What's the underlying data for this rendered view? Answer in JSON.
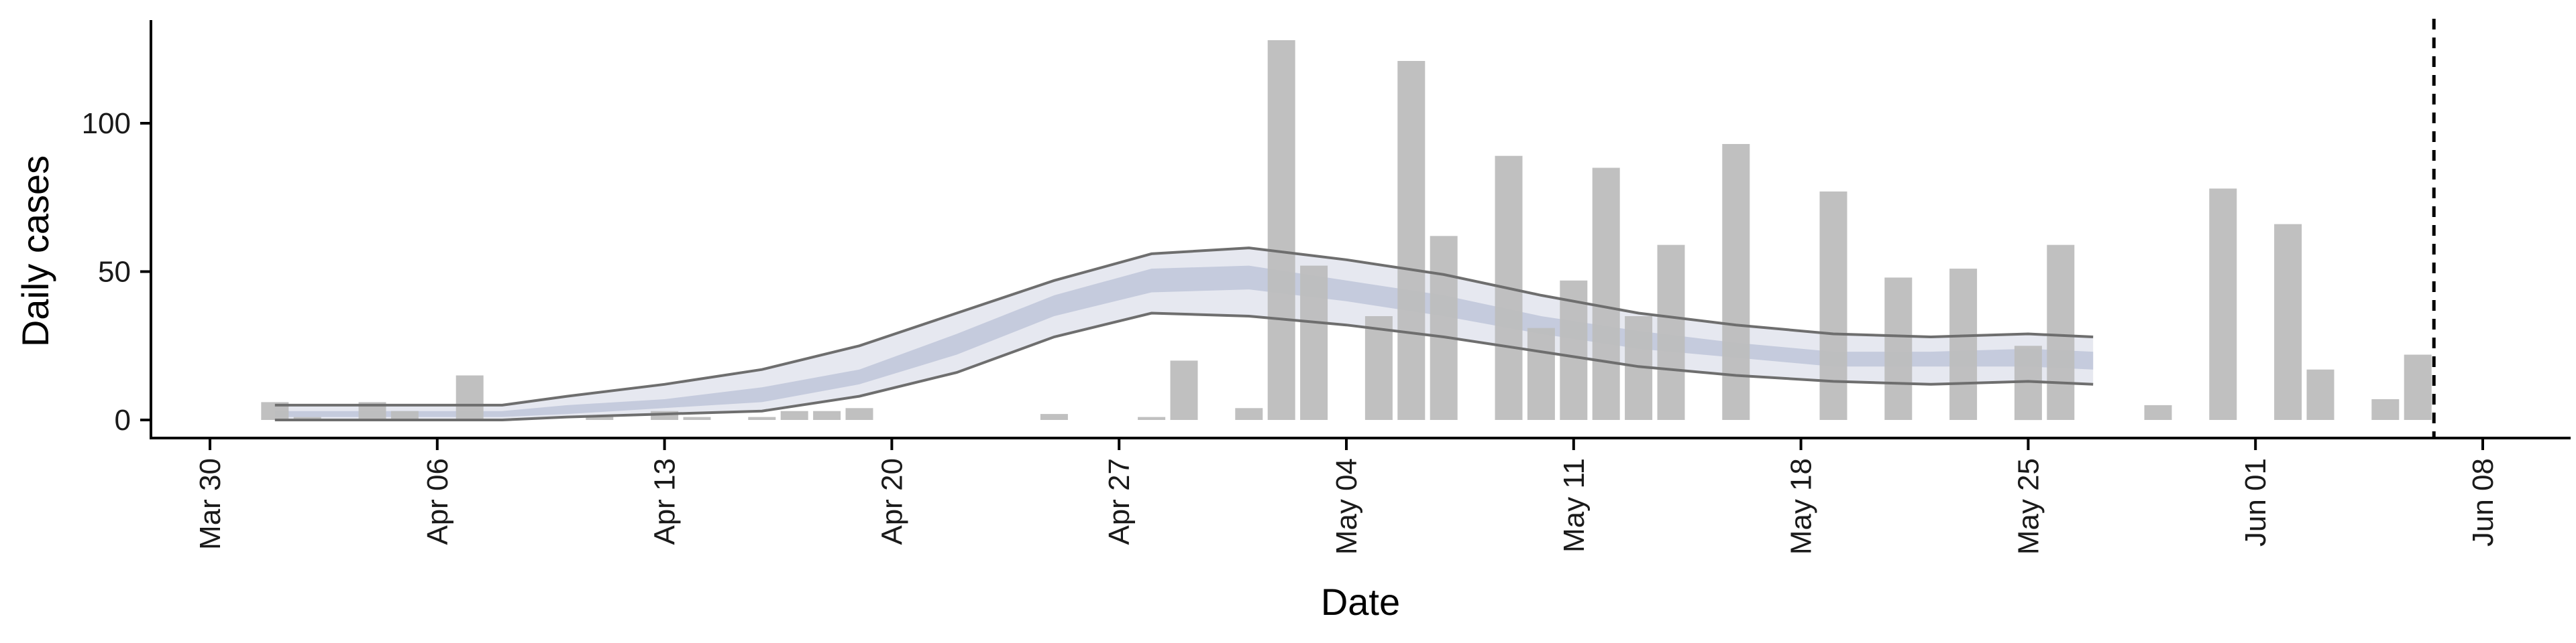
{
  "chart_data": {
    "type": "bar",
    "xlabel": "Date",
    "ylabel": "Daily cases",
    "x_tick_labels": [
      "Mar 30",
      "Apr 06",
      "Apr 13",
      "Apr 20",
      "Apr 27",
      "May 04",
      "May 11",
      "May 18",
      "May 25",
      "Jun 01",
      "Jun 08"
    ],
    "x_tick_dates": [
      "2020-03-30",
      "2020-04-06",
      "2020-04-13",
      "2020-04-20",
      "2020-04-27",
      "2020-05-04",
      "2020-05-11",
      "2020-05-18",
      "2020-05-25",
      "2020-06-01",
      "2020-06-08"
    ],
    "y_ticks": [
      0,
      50,
      100
    ],
    "ylim": [
      -6,
      135
    ],
    "xlim": [
      "2020-03-30",
      "2020-06-10"
    ],
    "vline_date": "2020-06-06",
    "colors": {
      "bars": "#bdbdbd",
      "outer_band": "#e6e8f0",
      "inner_band": "#c5cbdd",
      "band_edge": "#6e6e6e",
      "axis": "#000000",
      "vline": "#000000"
    },
    "bars": [
      {
        "date": "2020-04-01",
        "value": 6
      },
      {
        "date": "2020-04-02",
        "value": 1
      },
      {
        "date": "2020-04-04",
        "value": 6
      },
      {
        "date": "2020-04-05",
        "value": 3
      },
      {
        "date": "2020-04-07",
        "value": 15
      },
      {
        "date": "2020-04-11",
        "value": 1
      },
      {
        "date": "2020-04-13",
        "value": 3
      },
      {
        "date": "2020-04-14",
        "value": 1
      },
      {
        "date": "2020-04-16",
        "value": 1
      },
      {
        "date": "2020-04-17",
        "value": 3
      },
      {
        "date": "2020-04-18",
        "value": 3
      },
      {
        "date": "2020-04-19",
        "value": 4
      },
      {
        "date": "2020-04-25",
        "value": 2
      },
      {
        "date": "2020-04-28",
        "value": 1
      },
      {
        "date": "2020-04-29",
        "value": 20
      },
      {
        "date": "2020-05-01",
        "value": 4
      },
      {
        "date": "2020-05-02",
        "value": 128
      },
      {
        "date": "2020-05-03",
        "value": 52
      },
      {
        "date": "2020-05-05",
        "value": 35
      },
      {
        "date": "2020-05-06",
        "value": 121
      },
      {
        "date": "2020-05-07",
        "value": 62
      },
      {
        "date": "2020-05-09",
        "value": 89
      },
      {
        "date": "2020-05-10",
        "value": 31
      },
      {
        "date": "2020-05-11",
        "value": 47
      },
      {
        "date": "2020-05-12",
        "value": 85
      },
      {
        "date": "2020-05-13",
        "value": 35
      },
      {
        "date": "2020-05-14",
        "value": 59
      },
      {
        "date": "2020-05-16",
        "value": 93
      },
      {
        "date": "2020-05-19",
        "value": 77
      },
      {
        "date": "2020-05-21",
        "value": 48
      },
      {
        "date": "2020-05-23",
        "value": 51
      },
      {
        "date": "2020-05-25",
        "value": 25
      },
      {
        "date": "2020-05-26",
        "value": 59
      },
      {
        "date": "2020-05-29",
        "value": 5
      },
      {
        "date": "2020-05-31",
        "value": 78
      },
      {
        "date": "2020-06-02",
        "value": 66
      },
      {
        "date": "2020-06-03",
        "value": 17
      },
      {
        "date": "2020-06-05",
        "value": 7
      },
      {
        "date": "2020-06-06",
        "value": 22
      }
    ],
    "bands": [
      {
        "date": "2020-04-01",
        "outer_lo": 0,
        "inner_lo": 1,
        "median": 2,
        "inner_hi": 3,
        "outer_hi": 5
      },
      {
        "date": "2020-04-08",
        "outer_lo": 0,
        "inner_lo": 1,
        "median": 2,
        "inner_hi": 3,
        "outer_hi": 5
      },
      {
        "date": "2020-04-10",
        "outer_lo": 1,
        "inner_lo": 2,
        "median": 3,
        "inner_hi": 5,
        "outer_hi": 8
      },
      {
        "date": "2020-04-13",
        "outer_lo": 2,
        "inner_lo": 4,
        "median": 5,
        "inner_hi": 7,
        "outer_hi": 12
      },
      {
        "date": "2020-04-16",
        "outer_lo": 3,
        "inner_lo": 6,
        "median": 8,
        "inner_hi": 11,
        "outer_hi": 17
      },
      {
        "date": "2020-04-19",
        "outer_lo": 8,
        "inner_lo": 12,
        "median": 14,
        "inner_hi": 17,
        "outer_hi": 25
      },
      {
        "date": "2020-04-22",
        "outer_lo": 16,
        "inner_lo": 22,
        "median": 25,
        "inner_hi": 29,
        "outer_hi": 36
      },
      {
        "date": "2020-04-25",
        "outer_lo": 28,
        "inner_lo": 35,
        "median": 38,
        "inner_hi": 42,
        "outer_hi": 47
      },
      {
        "date": "2020-04-28",
        "outer_lo": 36,
        "inner_lo": 43,
        "median": 47,
        "inner_hi": 51,
        "outer_hi": 56
      },
      {
        "date": "2020-05-01",
        "outer_lo": 35,
        "inner_lo": 44,
        "median": 48,
        "inner_hi": 52,
        "outer_hi": 58
      },
      {
        "date": "2020-05-04",
        "outer_lo": 32,
        "inner_lo": 40,
        "median": 43,
        "inner_hi": 47,
        "outer_hi": 54
      },
      {
        "date": "2020-05-07",
        "outer_lo": 28,
        "inner_lo": 35,
        "median": 38,
        "inner_hi": 42,
        "outer_hi": 49
      },
      {
        "date": "2020-05-10",
        "outer_lo": 23,
        "inner_lo": 29,
        "median": 32,
        "inner_hi": 35,
        "outer_hi": 42
      },
      {
        "date": "2020-05-13",
        "outer_lo": 18,
        "inner_lo": 24,
        "median": 27,
        "inner_hi": 30,
        "outer_hi": 36
      },
      {
        "date": "2020-05-16",
        "outer_lo": 15,
        "inner_lo": 21,
        "median": 23,
        "inner_hi": 26,
        "outer_hi": 32
      },
      {
        "date": "2020-05-19",
        "outer_lo": 13,
        "inner_lo": 18,
        "median": 20,
        "inner_hi": 23,
        "outer_hi": 29
      },
      {
        "date": "2020-05-22",
        "outer_lo": 12,
        "inner_lo": 18,
        "median": 20,
        "inner_hi": 23,
        "outer_hi": 28
      },
      {
        "date": "2020-05-25",
        "outer_lo": 13,
        "inner_lo": 18,
        "median": 21,
        "inner_hi": 24,
        "outer_hi": 29
      },
      {
        "date": "2020-05-27",
        "outer_lo": 12,
        "inner_lo": 17,
        "median": 20,
        "inner_hi": 23,
        "outer_hi": 28
      }
    ]
  }
}
